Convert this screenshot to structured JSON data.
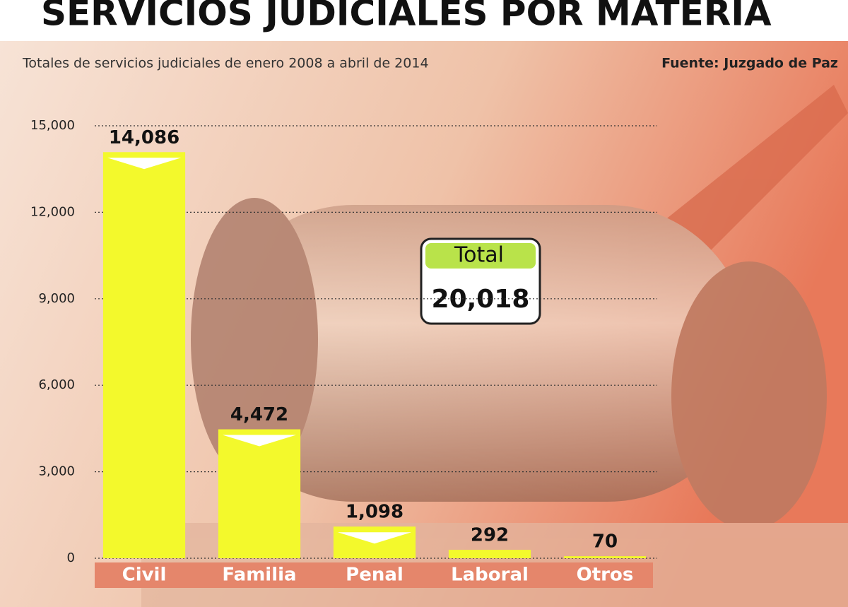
{
  "chart_data": {
    "type": "bar",
    "title": "SERVICIOS JUDICIALES POR MATERIA",
    "subtitle": "Totales de servicios judiciales de enero 2008 a abril de 2014",
    "source": "Fuente: Juzgado de Paz",
    "categories": [
      "Civil",
      "Familia",
      "Penal",
      "Laboral",
      "Otros"
    ],
    "values": [
      14086,
      4472,
      1098,
      292,
      70
    ],
    "value_labels": [
      "14,086",
      "4,472",
      "1,098",
      "292",
      "70"
    ],
    "color": "#f3f92c",
    "ylim": [
      0,
      15000
    ],
    "yticks": [
      0,
      {
        "value": 3000,
        "label": "3,000"
      },
      {
        "value": 6000,
        "label": "6,000"
      },
      {
        "value": 9000,
        "label": "9,000"
      },
      {
        "value": 12000,
        "label": "12,000"
      },
      {
        "value": 15000,
        "label": "15,000"
      }
    ],
    "grid": true,
    "annotation": {
      "label": "Total",
      "text": "20,018"
    }
  }
}
